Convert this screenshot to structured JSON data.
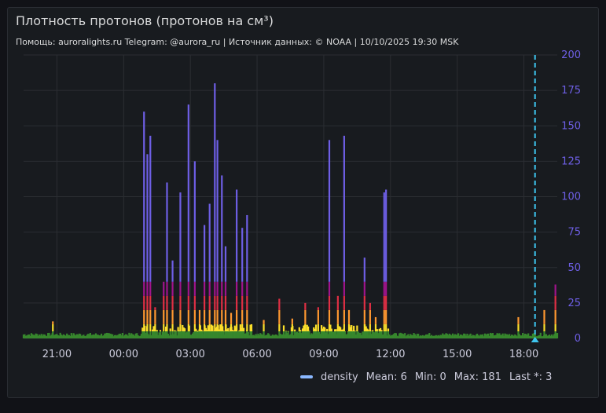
{
  "panel": {
    "title": "Плотность протонов (протонов на см³)",
    "subtitle": "Помощь: auroralights.ru Telegram: @aurora_ru | Источник данных:  © NOAA | 10/10/2025 19:30 MSK"
  },
  "legend": {
    "series_name": "density",
    "mean_label": "Mean: 6",
    "min_label": "Min: 0",
    "max_label": "Max: 181",
    "last_label": "Last *: 3",
    "color": "#8ab8ff"
  },
  "chart_data": {
    "type": "bar",
    "x_unit": "hours",
    "x_start": 19.5,
    "x_end": 19.5,
    "x_ticks": [
      "21:00",
      "00:00",
      "03:00",
      "06:00",
      "09:00",
      "12:00",
      "15:00",
      "18:00"
    ],
    "y_ticks": [
      "0",
      "25",
      "50",
      "75",
      "100",
      "125",
      "150",
      "175",
      "200"
    ],
    "ylim": [
      0,
      200
    ],
    "y_axis_side": "right",
    "marker_time": "18:30",
    "color_thresholds": [
      {
        "min": 0,
        "color": "#37872d"
      },
      {
        "min": 5,
        "color": "#fade2a"
      },
      {
        "min": 10,
        "color": "#ff9830"
      },
      {
        "min": 20,
        "color": "#e02f44"
      },
      {
        "min": 30,
        "color": "#a0148c"
      },
      {
        "min": 40,
        "color": "#6e5fe6"
      }
    ],
    "spikes": [
      {
        "t": "20:49",
        "v": 12
      },
      {
        "t": "00:55",
        "v": 160
      },
      {
        "t": "01:04",
        "v": 130
      },
      {
        "t": "01:12",
        "v": 143
      },
      {
        "t": "01:25",
        "v": 22
      },
      {
        "t": "01:48",
        "v": 40
      },
      {
        "t": "01:57",
        "v": 110
      },
      {
        "t": "02:12",
        "v": 55
      },
      {
        "t": "02:33",
        "v": 103
      },
      {
        "t": "02:55",
        "v": 165
      },
      {
        "t": "03:12",
        "v": 125
      },
      {
        "t": "03:25",
        "v": 20
      },
      {
        "t": "03:38",
        "v": 80
      },
      {
        "t": "03:52",
        "v": 95
      },
      {
        "t": "04:06",
        "v": 180
      },
      {
        "t": "04:13",
        "v": 140
      },
      {
        "t": "04:25",
        "v": 115
      },
      {
        "t": "04:35",
        "v": 65
      },
      {
        "t": "04:50",
        "v": 18
      },
      {
        "t": "05:05",
        "v": 105
      },
      {
        "t": "05:20",
        "v": 78
      },
      {
        "t": "05:33",
        "v": 87
      },
      {
        "t": "05:45",
        "v": 10
      },
      {
        "t": "06:18",
        "v": 13
      },
      {
        "t": "07:00",
        "v": 28
      },
      {
        "t": "07:35",
        "v": 14
      },
      {
        "t": "08:10",
        "v": 25
      },
      {
        "t": "08:45",
        "v": 22
      },
      {
        "t": "09:15",
        "v": 140
      },
      {
        "t": "09:38",
        "v": 30
      },
      {
        "t": "09:55",
        "v": 143
      },
      {
        "t": "10:08",
        "v": 20
      },
      {
        "t": "10:50",
        "v": 57
      },
      {
        "t": "11:05",
        "v": 25
      },
      {
        "t": "11:20",
        "v": 15
      },
      {
        "t": "11:43",
        "v": 103
      },
      {
        "t": "11:48",
        "v": 105
      },
      {
        "t": "17:45",
        "v": 15
      },
      {
        "t": "18:55",
        "v": 20
      },
      {
        "t": "19:25",
        "v": 38
      }
    ]
  }
}
